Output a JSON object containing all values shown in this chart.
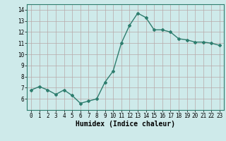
{
  "x": [
    0,
    1,
    2,
    3,
    4,
    5,
    6,
    7,
    8,
    9,
    10,
    11,
    12,
    13,
    14,
    15,
    16,
    17,
    18,
    19,
    20,
    21,
    22,
    23
  ],
  "y": [
    6.8,
    7.1,
    6.8,
    6.4,
    6.8,
    6.3,
    5.6,
    5.8,
    6.0,
    7.5,
    8.5,
    11.0,
    12.6,
    13.7,
    13.3,
    12.2,
    12.2,
    12.0,
    11.4,
    11.3,
    11.1,
    11.1,
    11.0,
    10.8
  ],
  "line_color": "#2e7d6e",
  "marker": "D",
  "marker_size": 2.0,
  "line_width": 1.0,
  "bg_color": "#ceeaea",
  "grid_color": "#b8a8a8",
  "xlabel": "Humidex (Indice chaleur)",
  "ylim": [
    5.0,
    14.5
  ],
  "yticks": [
    6,
    7,
    8,
    9,
    10,
    11,
    12,
    13,
    14
  ],
  "xticks": [
    0,
    1,
    2,
    3,
    4,
    5,
    6,
    7,
    8,
    9,
    10,
    11,
    12,
    13,
    14,
    15,
    16,
    17,
    18,
    19,
    20,
    21,
    22,
    23
  ],
  "xlabel_fontsize": 7.0,
  "tick_fontsize": 5.5
}
